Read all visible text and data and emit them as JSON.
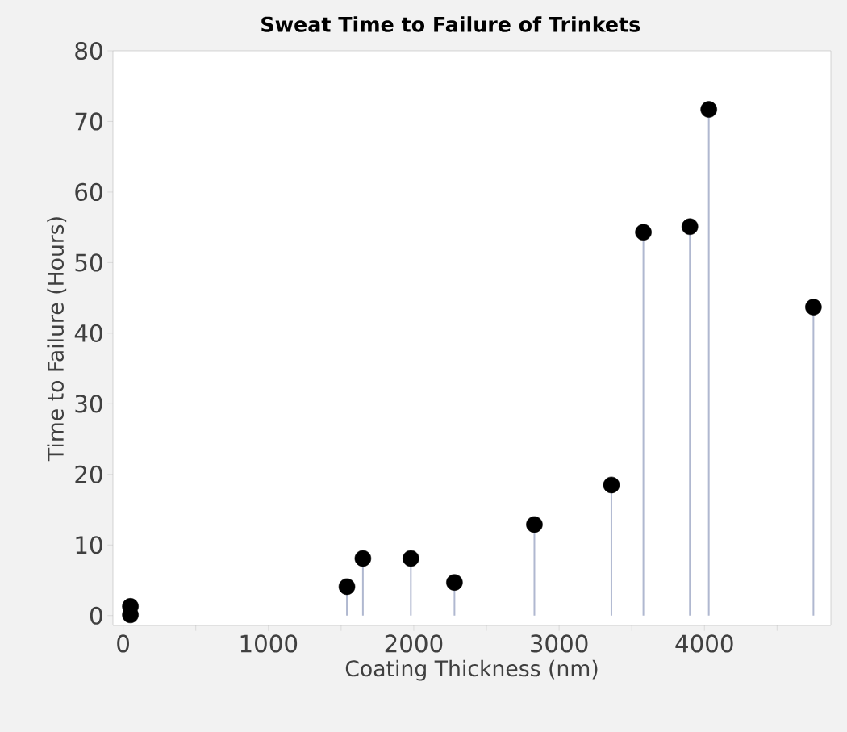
{
  "chart_data": {
    "type": "lollipop",
    "title": "Sweat Time to Failure of Trinkets",
    "xlabel": "Coating Thickness (nm)",
    "ylabel": "Time to Failure (Hours)",
    "x": [
      50,
      50,
      1540,
      1650,
      1980,
      2280,
      2830,
      3360,
      3580,
      3900,
      4030,
      4750
    ],
    "values": [
      1.3,
      0.1,
      4.1,
      8.1,
      8.1,
      4.7,
      12.9,
      18.5,
      54.3,
      55.1,
      71.7,
      43.7
    ],
    "color": "#000000",
    "marker": "circle",
    "xlim": [
      -70,
      4870
    ],
    "ylim": [
      -1.4,
      80
    ],
    "xticks": [
      0,
      {
        "value": 500,
        "label": null
      },
      1000,
      {
        "value": 1500,
        "label": null
      },
      2000,
      {
        "value": 2500,
        "label": null
      },
      3000,
      {
        "value": 3500,
        "label": null
      },
      4000,
      {
        "value": 4500,
        "label": null
      }
    ],
    "yticks": [
      0,
      10,
      20,
      30,
      40,
      50,
      60,
      70,
      80
    ]
  }
}
